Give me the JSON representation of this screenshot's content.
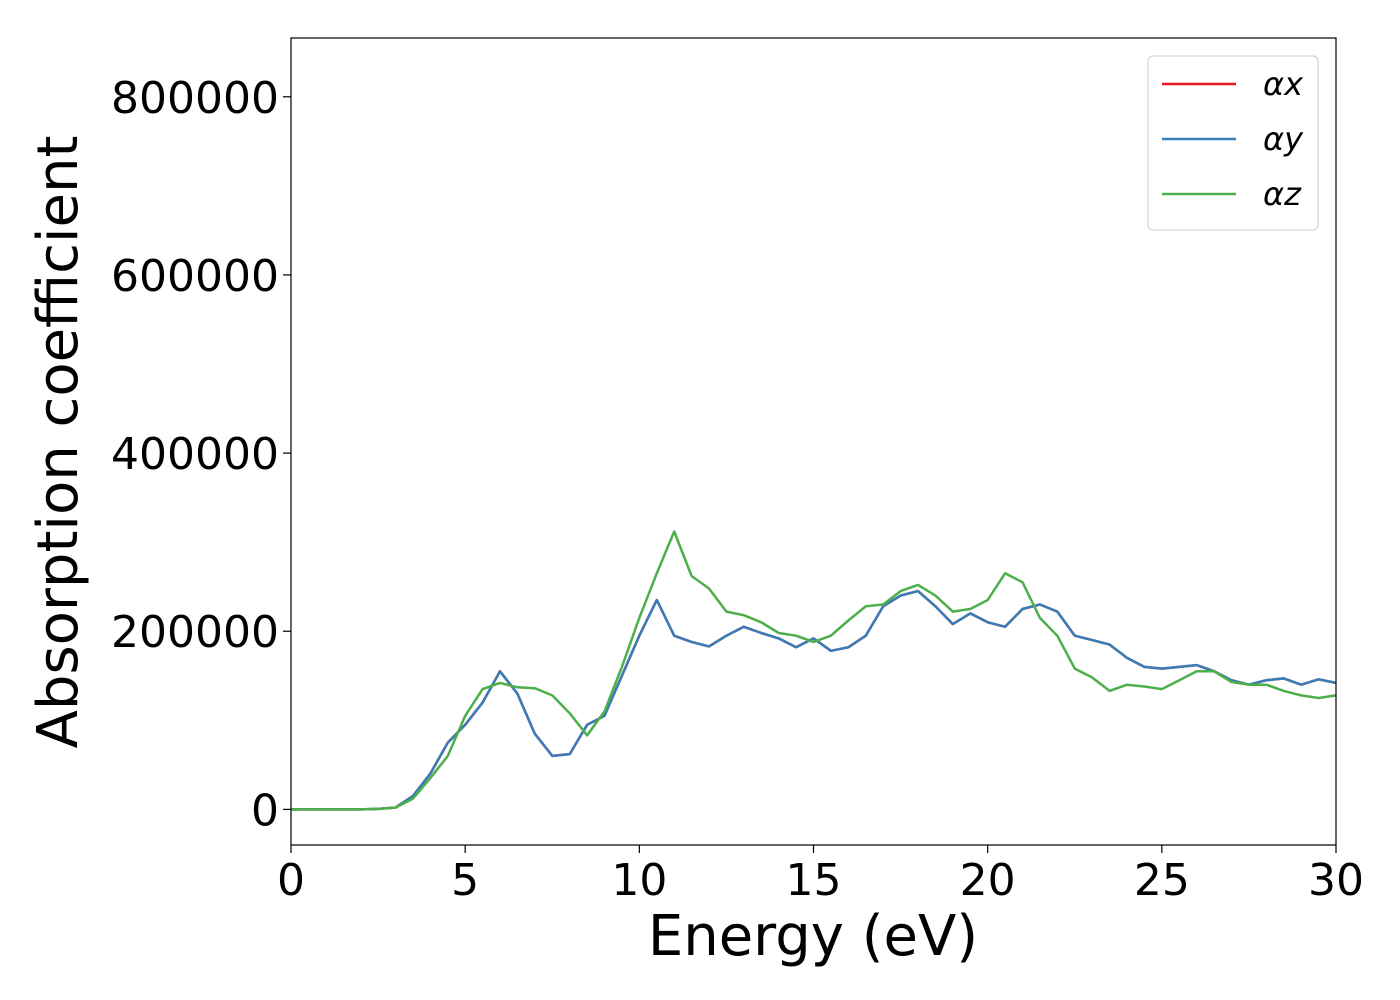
{
  "chart_data": {
    "type": "line",
    "x_label": "Energy (eV)",
    "y_label": "Absorption coefficient",
    "x": [
      0,
      0.5,
      1,
      1.5,
      2,
      2.5,
      3,
      3.5,
      4,
      4.5,
      5,
      5.5,
      6,
      6.5,
      7,
      7.5,
      8,
      8.5,
      9,
      9.5,
      10,
      10.5,
      11,
      11.5,
      12,
      12.5,
      13,
      13.5,
      14,
      14.5,
      15,
      15.5,
      16,
      16.5,
      17,
      17.5,
      18,
      18.5,
      19,
      19.5,
      20,
      20.5,
      21,
      21.5,
      22,
      22.5,
      23,
      23.5,
      24,
      24.5,
      25,
      25.5,
      26,
      26.5,
      27,
      27.5,
      28,
      28.5,
      29,
      29.5,
      30
    ],
    "series": [
      {
        "name": "αx",
        "color": "#e41a1c",
        "values": [
          0,
          0,
          0,
          0,
          0,
          500,
          2000,
          15000,
          40000,
          75000,
          95000,
          120000,
          155000,
          130000,
          85000,
          60000,
          62000,
          95000,
          105000,
          150000,
          195000,
          235000,
          195000,
          188000,
          183000,
          195000,
          205000,
          198000,
          192000,
          182000,
          192000,
          178000,
          182000,
          195000,
          228000,
          240000,
          245000,
          228000,
          208000,
          220000,
          210000,
          205000,
          225000,
          230000,
          222000,
          195000,
          190000,
          185000,
          170000,
          160000,
          158000,
          160000,
          162000,
          155000,
          145000,
          140000,
          145000,
          147000,
          140000,
          146000,
          142000
        ]
      },
      {
        "name": "αy",
        "color": "#377eb8",
        "values": [
          0,
          0,
          0,
          0,
          0,
          500,
          2000,
          15000,
          40000,
          75000,
          95000,
          120000,
          155000,
          130000,
          85000,
          60000,
          62000,
          95000,
          105000,
          150000,
          195000,
          235000,
          195000,
          188000,
          183000,
          195000,
          205000,
          198000,
          192000,
          182000,
          192000,
          178000,
          182000,
          195000,
          228000,
          240000,
          245000,
          228000,
          208000,
          220000,
          210000,
          205000,
          225000,
          230000,
          222000,
          195000,
          190000,
          185000,
          170000,
          160000,
          158000,
          160000,
          162000,
          155000,
          145000,
          140000,
          145000,
          147000,
          140000,
          146000,
          142000
        ]
      },
      {
        "name": "αz",
        "color": "#4daf4a",
        "values": [
          0,
          0,
          0,
          0,
          0,
          500,
          2000,
          12000,
          35000,
          60000,
          105000,
          135000,
          142000,
          137000,
          136000,
          128000,
          108000,
          83000,
          110000,
          160000,
          215000,
          265000,
          312000,
          262000,
          248000,
          222000,
          218000,
          210000,
          198000,
          195000,
          188000,
          195000,
          212000,
          228000,
          230000,
          245000,
          252000,
          240000,
          222000,
          225000,
          235000,
          265000,
          255000,
          215000,
          195000,
          158000,
          148000,
          133000,
          140000,
          138000,
          135000,
          145000,
          155000,
          155000,
          143000,
          140000,
          140000,
          133000,
          128000,
          125000,
          128000
        ]
      }
    ],
    "xlim": [
      0,
      30
    ],
    "ylim": [
      -40000,
      866000
    ],
    "xticks": [
      0,
      5,
      10,
      15,
      20,
      25,
      30
    ],
    "yticks": [
      0,
      200000,
      400000,
      600000,
      800000
    ],
    "grid": false,
    "legend": "upper right"
  }
}
